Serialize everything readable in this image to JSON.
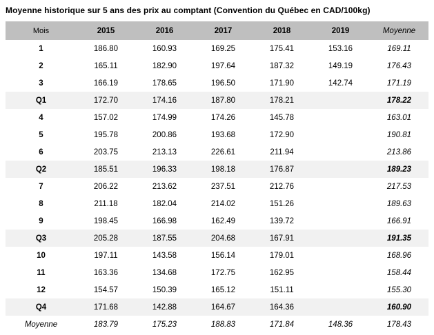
{
  "title": "Moyenne historique sur 5 ans des prix au comptant (Convention du Québec en CAD/100kg)",
  "table": {
    "columns": [
      "Mois",
      "2015",
      "2016",
      "2017",
      "2018",
      "2019",
      "Moyenne"
    ],
    "rows": [
      {
        "label": "1",
        "type": "month",
        "values": [
          "186.80",
          "160.93",
          "169.25",
          "175.41",
          "153.16",
          "169.11"
        ]
      },
      {
        "label": "2",
        "type": "month",
        "values": [
          "165.11",
          "182.90",
          "197.64",
          "187.32",
          "149.19",
          "176.43"
        ]
      },
      {
        "label": "3",
        "type": "month",
        "values": [
          "166.19",
          "178.65",
          "196.50",
          "171.90",
          "142.74",
          "171.19"
        ]
      },
      {
        "label": "Q1",
        "type": "quarter",
        "values": [
          "172.70",
          "174.16",
          "187.80",
          "178.21",
          "",
          "178.22"
        ]
      },
      {
        "label": "4",
        "type": "month",
        "values": [
          "157.02",
          "174.99",
          "174.26",
          "145.78",
          "",
          "163.01"
        ]
      },
      {
        "label": "5",
        "type": "month",
        "values": [
          "195.78",
          "200.86",
          "193.68",
          "172.90",
          "",
          "190.81"
        ]
      },
      {
        "label": "6",
        "type": "month",
        "values": [
          "203.75",
          "213.13",
          "226.61",
          "211.94",
          "",
          "213.86"
        ]
      },
      {
        "label": "Q2",
        "type": "quarter",
        "values": [
          "185.51",
          "196.33",
          "198.18",
          "176.87",
          "",
          "189.23"
        ]
      },
      {
        "label": "7",
        "type": "month",
        "values": [
          "206.22",
          "213.62",
          "237.51",
          "212.76",
          "",
          "217.53"
        ]
      },
      {
        "label": "8",
        "type": "month",
        "values": [
          "211.18",
          "182.04",
          "214.02",
          "151.26",
          "",
          "189.63"
        ]
      },
      {
        "label": "9",
        "type": "month",
        "values": [
          "198.45",
          "166.98",
          "162.49",
          "139.72",
          "",
          "166.91"
        ]
      },
      {
        "label": "Q3",
        "type": "quarter",
        "values": [
          "205.28",
          "187.55",
          "204.68",
          "167.91",
          "",
          "191.35"
        ]
      },
      {
        "label": "10",
        "type": "month",
        "values": [
          "197.11",
          "143.58",
          "156.14",
          "179.01",
          "",
          "168.96"
        ]
      },
      {
        "label": "11",
        "type": "month",
        "values": [
          "163.36",
          "134.68",
          "172.75",
          "162.95",
          "",
          "158.44"
        ]
      },
      {
        "label": "12",
        "type": "month",
        "values": [
          "154.57",
          "150.39",
          "165.12",
          "151.11",
          "",
          "155.30"
        ]
      },
      {
        "label": "Q4",
        "type": "quarter",
        "values": [
          "171.68",
          "142.88",
          "164.67",
          "164.36",
          "",
          "160.90"
        ]
      },
      {
        "label": "Moyenne",
        "type": "total",
        "values": [
          "183.79",
          "175.23",
          "188.83",
          "171.84",
          "148.36",
          "178.43"
        ]
      }
    ]
  },
  "colors": {
    "header_bg": "#bfbfbf",
    "quarter_row_bg": "#f1f1f1",
    "text": "#000000"
  },
  "chart_data": {
    "type": "table",
    "title": "Moyenne historique sur 5 ans des prix au comptant (Convention du Québec en CAD/100kg)",
    "unit": "CAD/100kg",
    "categories": [
      "1",
      "2",
      "3",
      "Q1",
      "4",
      "5",
      "6",
      "Q2",
      "7",
      "8",
      "9",
      "Q3",
      "10",
      "11",
      "12",
      "Q4",
      "Moyenne"
    ],
    "series": [
      {
        "name": "2015",
        "values": [
          186.8,
          165.11,
          166.19,
          172.7,
          157.02,
          195.78,
          203.75,
          185.51,
          206.22,
          211.18,
          198.45,
          205.28,
          197.11,
          163.36,
          154.57,
          171.68,
          183.79
        ]
      },
      {
        "name": "2016",
        "values": [
          160.93,
          182.9,
          178.65,
          174.16,
          174.99,
          200.86,
          213.13,
          196.33,
          213.62,
          182.04,
          166.98,
          187.55,
          143.58,
          134.68,
          150.39,
          142.88,
          175.23
        ]
      },
      {
        "name": "2017",
        "values": [
          169.25,
          197.64,
          196.5,
          187.8,
          174.26,
          193.68,
          226.61,
          198.18,
          237.51,
          214.02,
          162.49,
          204.68,
          156.14,
          172.75,
          165.12,
          164.67,
          188.83
        ]
      },
      {
        "name": "2018",
        "values": [
          175.41,
          187.32,
          171.9,
          178.21,
          145.78,
          172.9,
          211.94,
          176.87,
          212.76,
          151.26,
          139.72,
          167.91,
          179.01,
          162.95,
          151.11,
          164.36,
          171.84
        ]
      },
      {
        "name": "2019",
        "values": [
          153.16,
          149.19,
          142.74,
          null,
          null,
          null,
          null,
          null,
          null,
          null,
          null,
          null,
          null,
          null,
          null,
          null,
          148.36
        ]
      },
      {
        "name": "Moyenne",
        "values": [
          169.11,
          176.43,
          171.19,
          178.22,
          163.01,
          190.81,
          213.86,
          189.23,
          217.53,
          189.63,
          166.91,
          191.35,
          168.96,
          158.44,
          155.3,
          160.9,
          178.43
        ]
      }
    ]
  }
}
